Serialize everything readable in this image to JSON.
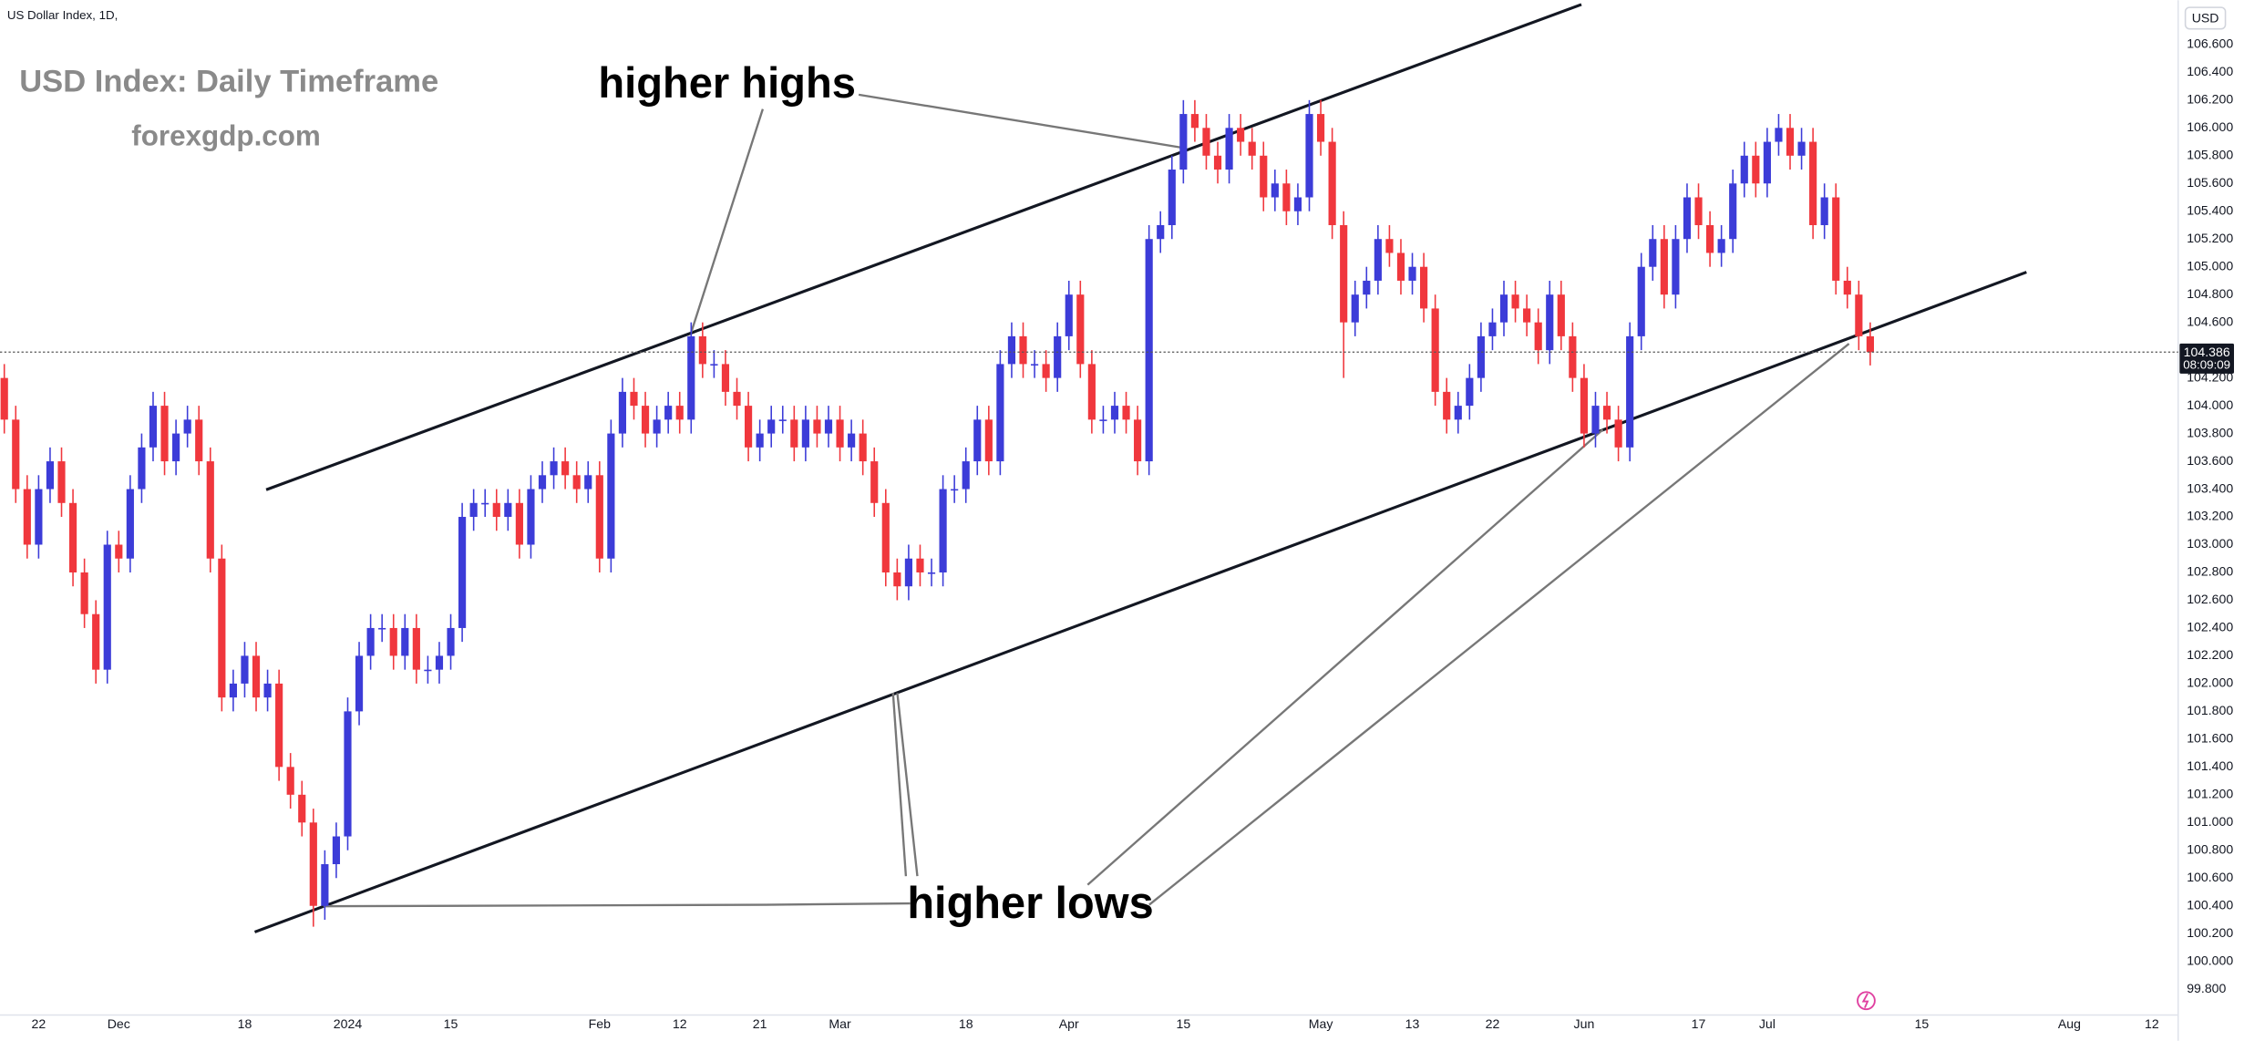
{
  "header": {
    "symbol": "US Dollar Index, 1D,",
    "currency": "USD"
  },
  "chart_data": {
    "type": "candlestick",
    "title": "USD Index: Daily Timeframe",
    "subtitle": "forexgdp.com",
    "annotations": [
      "higher highs",
      "higher lows"
    ],
    "countdown": "08:09:09",
    "up_color": "#3c3cd8",
    "down_color": "#f0373d",
    "grid": false,
    "xlim": [
      -0.375,
      189.9
    ],
    "ylim": [
      99.604,
      106.919
    ],
    "xticks": [
      {
        "value": 3,
        "label": "22"
      },
      {
        "value": 10,
        "label": "Dec"
      },
      {
        "value": 21,
        "label": "18"
      },
      {
        "value": 30,
        "label": "2024"
      },
      {
        "value": 39,
        "label": "15"
      },
      {
        "value": 52,
        "label": "Feb"
      },
      {
        "value": 59,
        "label": "12"
      },
      {
        "value": 66,
        "label": "21"
      },
      {
        "value": 73,
        "label": "Mar"
      },
      {
        "value": 84,
        "label": "18"
      },
      {
        "value": 93,
        "label": "Apr"
      },
      {
        "value": 103,
        "label": "15"
      },
      {
        "value": 115,
        "label": "May"
      },
      {
        "value": 123,
        "label": "13"
      },
      {
        "value": 130,
        "label": "22"
      },
      {
        "value": 138,
        "label": "Jun"
      },
      {
        "value": 148,
        "label": "17"
      },
      {
        "value": 154,
        "label": "Jul"
      },
      {
        "value": 167.5,
        "label": "15"
      },
      {
        "value": 180.4,
        "label": "Aug"
      },
      {
        "value": 187.6,
        "label": "12"
      }
    ],
    "yticks": [
      {
        "value": 99.8,
        "label": "99.800"
      },
      {
        "value": 100.0,
        "label": "100.000"
      },
      {
        "value": 100.2,
        "label": "100.200"
      },
      {
        "value": 100.4,
        "label": "100.400"
      },
      {
        "value": 100.6,
        "label": "100.600"
      },
      {
        "value": 100.8,
        "label": "100.800"
      },
      {
        "value": 101.0,
        "label": "101.000"
      },
      {
        "value": 101.2,
        "label": "101.200"
      },
      {
        "value": 101.4,
        "label": "101.400"
      },
      {
        "value": 101.6,
        "label": "101.600"
      },
      {
        "value": 101.8,
        "label": "101.800"
      },
      {
        "value": 102.0,
        "label": "102.000"
      },
      {
        "value": 102.2,
        "label": "102.200"
      },
      {
        "value": 102.4,
        "label": "102.400"
      },
      {
        "value": 102.6,
        "label": "102.600"
      },
      {
        "value": 102.8,
        "label": "102.800"
      },
      {
        "value": 103.0,
        "label": "103.000"
      },
      {
        "value": 103.2,
        "label": "103.200"
      },
      {
        "value": 103.4,
        "label": "103.400"
      },
      {
        "value": 103.6,
        "label": "103.600"
      },
      {
        "value": 103.8,
        "label": "103.800"
      },
      {
        "value": 104.0,
        "label": "104.000"
      },
      {
        "value": 104.2,
        "label": "104.200"
      },
      {
        "value": 104.6,
        "label": "104.600"
      },
      {
        "value": 104.8,
        "label": "104.800"
      },
      {
        "value": 105.0,
        "label": "105.000"
      },
      {
        "value": 105.2,
        "label": "105.200"
      },
      {
        "value": 105.4,
        "label": "105.400"
      },
      {
        "value": 105.6,
        "label": "105.600"
      },
      {
        "value": 105.8,
        "label": "105.800"
      },
      {
        "value": 106.0,
        "label": "106.000"
      },
      {
        "value": 106.2,
        "label": "106.200"
      },
      {
        "value": 106.4,
        "label": "106.400"
      },
      {
        "value": 106.6,
        "label": "106.600"
      }
    ],
    "open": [
      104.2,
      103.9,
      103.4,
      103.0,
      103.4,
      103.6,
      103.3,
      102.8,
      102.5,
      102.1,
      103.0,
      102.9,
      103.4,
      103.7,
      104.0,
      103.6,
      103.8,
      103.9,
      103.6,
      102.9,
      101.9,
      102.0,
      102.2,
      101.9,
      102.0,
      101.4,
      101.2,
      101.0,
      100.4,
      100.7,
      100.9,
      101.8,
      102.2,
      102.4,
      102.4,
      102.2,
      102.4,
      102.1,
      102.1,
      102.2,
      102.4,
      103.2,
      103.3,
      103.3,
      103.2,
      103.3,
      103.0,
      103.4,
      103.5,
      103.6,
      103.5,
      103.4,
      103.5,
      102.9,
      103.8,
      104.1,
      104.0,
      103.8,
      103.9,
      104.0,
      103.9,
      104.5,
      104.3,
      104.3,
      104.1,
      104.0,
      103.7,
      103.8,
      103.9,
      103.9,
      103.7,
      103.9,
      103.8,
      103.9,
      103.7,
      103.8,
      103.6,
      103.3,
      102.8,
      102.7,
      102.9,
      102.8,
      102.8,
      103.4,
      103.4,
      103.6,
      103.9,
      103.6,
      104.3,
      104.5,
      104.3,
      104.3,
      104.2,
      104.5,
      104.8,
      104.3,
      103.9,
      103.9,
      104.0,
      103.9,
      103.6,
      105.2,
      105.3,
      105.7,
      106.1,
      106.0,
      105.8,
      105.7,
      106.0,
      105.9,
      105.8,
      105.5,
      105.6,
      105.4,
      105.5,
      106.1,
      105.9,
      105.3,
      104.6,
      104.8,
      104.9,
      105.2,
      105.1,
      104.9,
      105.0,
      104.7,
      104.1,
      103.9,
      104.0,
      104.2,
      104.5,
      104.6,
      104.8,
      104.7,
      104.6,
      104.4,
      104.8,
      104.5,
      104.2,
      103.8,
      104.0,
      103.9,
      103.7,
      104.5,
      105.0,
      105.2,
      104.8,
      105.2,
      105.5,
      105.3,
      105.1,
      105.2,
      105.6,
      105.8,
      105.6,
      105.9,
      106.0,
      105.8,
      105.9,
      105.3,
      105.5,
      104.9,
      104.8,
      104.5
    ],
    "high": [
      104.3,
      104.0,
      103.5,
      103.5,
      103.7,
      103.7,
      103.4,
      102.9,
      102.6,
      103.1,
      103.1,
      103.5,
      103.8,
      104.1,
      104.1,
      103.9,
      104.0,
      104.0,
      103.7,
      103.0,
      102.1,
      102.3,
      102.3,
      102.1,
      102.1,
      101.5,
      101.3,
      101.1,
      100.8,
      101.0,
      101.9,
      102.3,
      102.5,
      102.5,
      102.5,
      102.5,
      102.5,
      102.2,
      102.3,
      102.5,
      103.3,
      103.4,
      103.4,
      103.4,
      103.4,
      103.4,
      103.5,
      103.6,
      103.7,
      103.7,
      103.6,
      103.6,
      103.6,
      103.9,
      104.2,
      104.2,
      104.1,
      104.0,
      104.1,
      104.1,
      104.6,
      104.6,
      104.4,
      104.4,
      104.2,
      104.1,
      103.9,
      104.0,
      104.0,
      104.0,
      104.0,
      104.0,
      104.0,
      104.0,
      103.9,
      103.9,
      103.7,
      103.4,
      102.9,
      103.0,
      103.0,
      102.9,
      103.5,
      103.5,
      103.7,
      104.0,
      104.0,
      104.4,
      104.6,
      104.6,
      104.4,
      104.4,
      104.6,
      104.9,
      104.9,
      104.4,
      104.0,
      104.1,
      104.1,
      104.0,
      105.3,
      105.4,
      105.8,
      106.2,
      106.2,
      106.1,
      105.9,
      106.1,
      106.1,
      106.0,
      105.9,
      105.7,
      105.7,
      105.6,
      106.2,
      106.2,
      106.0,
      105.4,
      104.9,
      105.0,
      105.3,
      105.3,
      105.2,
      105.1,
      105.1,
      104.8,
      104.2,
      104.1,
      104.3,
      104.6,
      104.7,
      104.9,
      104.9,
      104.8,
      104.7,
      104.9,
      104.9,
      104.6,
      104.3,
      104.1,
      104.1,
      104.0,
      104.6,
      105.1,
      105.3,
      105.3,
      105.3,
      105.6,
      105.6,
      105.4,
      105.3,
      105.7,
      105.9,
      105.9,
      106.0,
      106.1,
      106.1,
      106.0,
      106.0,
      105.6,
      105.6,
      105.0,
      104.9,
      104.6
    ],
    "low": [
      103.8,
      103.3,
      102.9,
      102.9,
      103.3,
      103.2,
      102.7,
      102.4,
      102.0,
      102.0,
      102.8,
      102.8,
      103.3,
      103.6,
      103.5,
      103.5,
      103.7,
      103.5,
      102.8,
      101.8,
      101.8,
      101.9,
      101.8,
      101.8,
      101.3,
      101.1,
      100.9,
      100.25,
      100.3,
      100.6,
      100.8,
      101.7,
      102.1,
      102.3,
      102.1,
      102.1,
      102.0,
      102.0,
      102.0,
      102.1,
      102.3,
      103.1,
      103.2,
      103.1,
      103.1,
      102.9,
      102.9,
      103.3,
      103.4,
      103.4,
      103.3,
      103.3,
      102.8,
      102.8,
      103.7,
      103.9,
      103.7,
      103.7,
      103.8,
      103.8,
      103.8,
      104.2,
      104.2,
      104.0,
      103.9,
      103.6,
      103.6,
      103.7,
      103.8,
      103.6,
      103.6,
      103.7,
      103.7,
      103.6,
      103.6,
      103.5,
      103.2,
      102.7,
      102.6,
      102.6,
      102.7,
      102.7,
      102.7,
      103.3,
      103.3,
      103.5,
      103.5,
      103.5,
      104.2,
      104.2,
      104.2,
      104.1,
      104.1,
      104.4,
      104.2,
      103.8,
      103.8,
      103.8,
      103.8,
      103.5,
      103.5,
      105.1,
      105.2,
      105.6,
      105.9,
      105.7,
      105.6,
      105.6,
      105.8,
      105.7,
      105.4,
      105.4,
      105.3,
      105.3,
      105.4,
      105.8,
      105.2,
      104.2,
      104.5,
      104.7,
      104.8,
      105.0,
      104.8,
      104.8,
      104.6,
      104.0,
      103.8,
      103.8,
      103.9,
      104.1,
      104.4,
      104.5,
      104.6,
      104.5,
      104.3,
      104.3,
      104.4,
      104.1,
      103.7,
      103.7,
      103.8,
      103.6,
      103.6,
      104.4,
      104.9,
      104.7,
      104.7,
      105.1,
      105.2,
      105.0,
      105.0,
      105.1,
      105.5,
      105.5,
      105.5,
      105.8,
      105.7,
      105.7,
      105.2,
      105.2,
      104.8,
      104.7,
      104.4,
      104.29
    ],
    "close": [
      103.9,
      103.4,
      103.0,
      103.4,
      103.6,
      103.3,
      102.8,
      102.5,
      102.1,
      103.0,
      102.9,
      103.4,
      103.7,
      104.0,
      103.6,
      103.8,
      103.9,
      103.6,
      102.9,
      101.9,
      102.0,
      102.2,
      101.9,
      102.0,
      101.4,
      101.2,
      101.0,
      100.4,
      100.7,
      100.9,
      101.8,
      102.2,
      102.4,
      102.4,
      102.2,
      102.4,
      102.1,
      102.1,
      102.2,
      102.4,
      103.2,
      103.3,
      103.3,
      103.2,
      103.3,
      103.0,
      103.4,
      103.5,
      103.6,
      103.5,
      103.4,
      103.5,
      102.9,
      103.8,
      104.1,
      104.0,
      103.8,
      103.9,
      104.0,
      103.9,
      104.5,
      104.3,
      104.3,
      104.1,
      104.0,
      103.7,
      103.8,
      103.9,
      103.9,
      103.7,
      103.9,
      103.8,
      103.9,
      103.7,
      103.8,
      103.6,
      103.3,
      102.8,
      102.7,
      102.9,
      102.8,
      102.8,
      103.4,
      103.4,
      103.6,
      103.9,
      103.6,
      104.3,
      104.5,
      104.3,
      104.3,
      104.2,
      104.5,
      104.8,
      104.3,
      103.9,
      103.9,
      104.0,
      103.9,
      103.6,
      105.2,
      105.3,
      105.7,
      106.1,
      106.0,
      105.8,
      105.7,
      106.0,
      105.9,
      105.8,
      105.5,
      105.6,
      105.4,
      105.5,
      106.1,
      105.9,
      105.3,
      104.6,
      104.8,
      104.9,
      105.2,
      105.1,
      104.9,
      105.0,
      104.7,
      104.1,
      103.9,
      104.0,
      104.2,
      104.5,
      104.6,
      104.8,
      104.7,
      104.6,
      104.4,
      104.8,
      104.5,
      104.2,
      103.8,
      104.0,
      103.9,
      103.7,
      104.5,
      105.0,
      105.2,
      104.8,
      105.2,
      105.5,
      105.3,
      105.1,
      105.2,
      105.6,
      105.8,
      105.6,
      105.9,
      106.0,
      105.8,
      105.9,
      105.3,
      105.5,
      104.9,
      104.8,
      104.5,
      104.386
    ]
  }
}
